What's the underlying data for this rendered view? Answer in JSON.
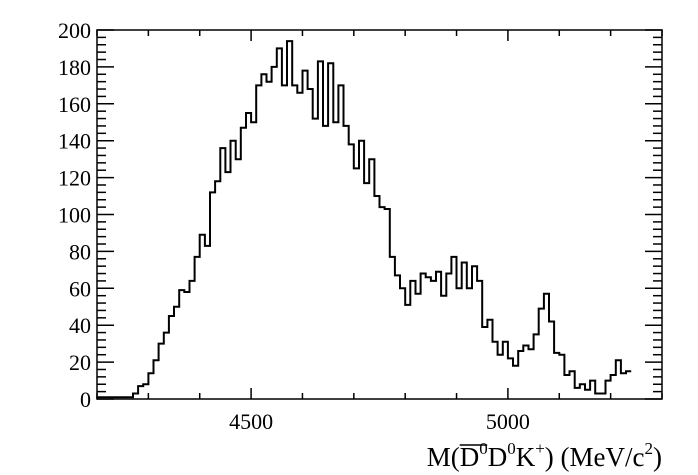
{
  "chart_data": {
    "type": "histogram",
    "title": "",
    "xlabel": {
      "prefix": "M(",
      "dbar": "D",
      "sup1": "0",
      "d": "D",
      "sup2": "0",
      "k": "K",
      "sup3": "+",
      "mid": ") (MeV/c",
      "sup4": "2",
      "suffix": ")"
    },
    "ylabel": "",
    "xlim": [
      4200,
      5300
    ],
    "ylim": [
      0,
      200
    ],
    "bin_width": 10,
    "x_ticks": [
      4500,
      5000
    ],
    "x_tick_labels": [
      "4500",
      "5000"
    ],
    "y_ticks": [
      0,
      20,
      40,
      60,
      80,
      100,
      120,
      140,
      160,
      180,
      200
    ],
    "y_tick_labels": [
      "0",
      "20",
      "40",
      "60",
      "80",
      "100",
      "120",
      "140",
      "160",
      "180",
      "200"
    ],
    "grid": false,
    "line_color": "#000000",
    "values": [
      1,
      1,
      1,
      1,
      1,
      1,
      1,
      3,
      7,
      8,
      14,
      21,
      30,
      36,
      45,
      50,
      59,
      58,
      64,
      77,
      89,
      83,
      112,
      118,
      136,
      123,
      140,
      130,
      147,
      155,
      150,
      170,
      176,
      172,
      180,
      190,
      170,
      194,
      170,
      166,
      178,
      168,
      152,
      183,
      148,
      182,
      150,
      170,
      148,
      138,
      125,
      140,
      117,
      130,
      110,
      104,
      103,
      77,
      67,
      60,
      51,
      64,
      57,
      68,
      66,
      64,
      69,
      56,
      68,
      77,
      60,
      74,
      60,
      72,
      64,
      39,
      43,
      31,
      24,
      31,
      22,
      18,
      26,
      29,
      27,
      35,
      49,
      57,
      42,
      25,
      24,
      13,
      15,
      6,
      8,
      5,
      10,
      3,
      3,
      10,
      13,
      21,
      14,
      15
    ]
  }
}
